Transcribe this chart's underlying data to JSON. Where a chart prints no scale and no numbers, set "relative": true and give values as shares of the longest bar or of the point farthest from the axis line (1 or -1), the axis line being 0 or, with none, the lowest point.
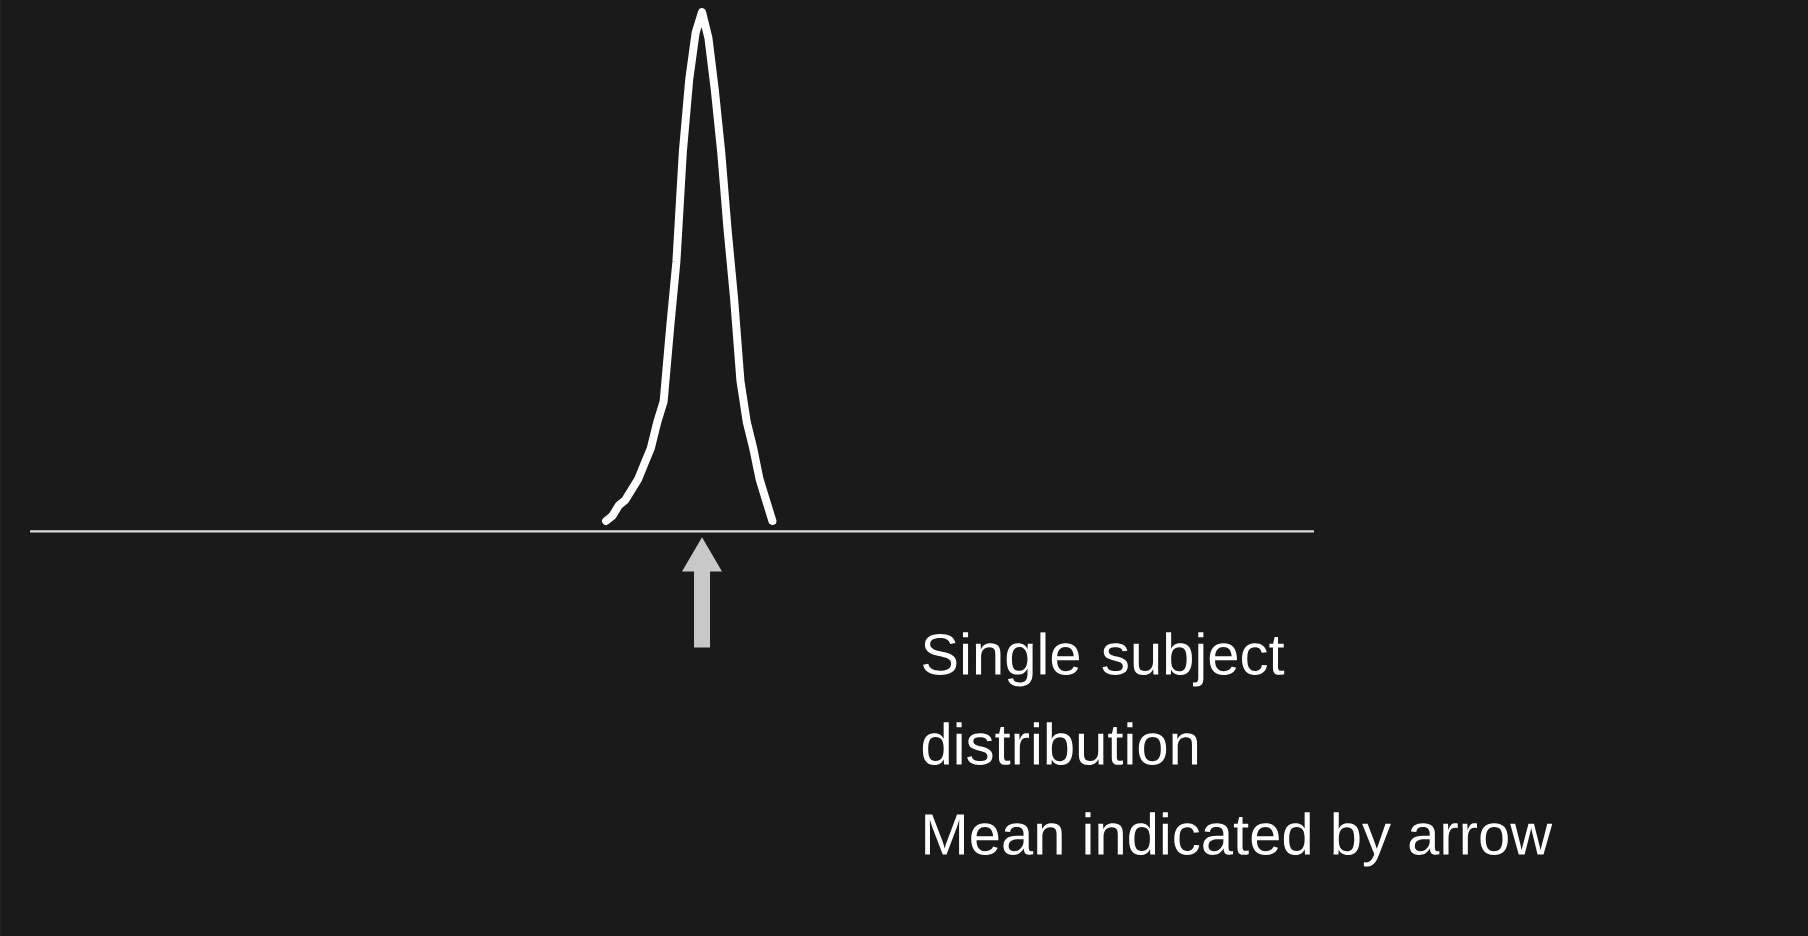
{
  "chart_data": {
    "type": "line",
    "relative": true,
    "categories": [
      null,
      null,
      null,
      null,
      null,
      null,
      null,
      null,
      null,
      null,
      null,
      null,
      null,
      null,
      null,
      null,
      null,
      null,
      null,
      null,
      null,
      null,
      null,
      null,
      null,
      null,
      null
    ],
    "values": [
      0.02,
      0.03,
      0.05,
      0.06,
      0.08,
      0.1,
      0.13,
      0.16,
      0.21,
      0.25,
      0.39,
      0.52,
      0.73,
      0.87,
      0.96,
      1.0,
      0.95,
      0.85,
      0.73,
      0.58,
      0.45,
      0.29,
      0.21,
      0.16,
      0.1,
      0.06,
      0.02
    ],
    "color": "#ffffff",
    "annotations": [
      "Single subject distribution",
      "Mean indicated by arrow"
    ]
  }
}
